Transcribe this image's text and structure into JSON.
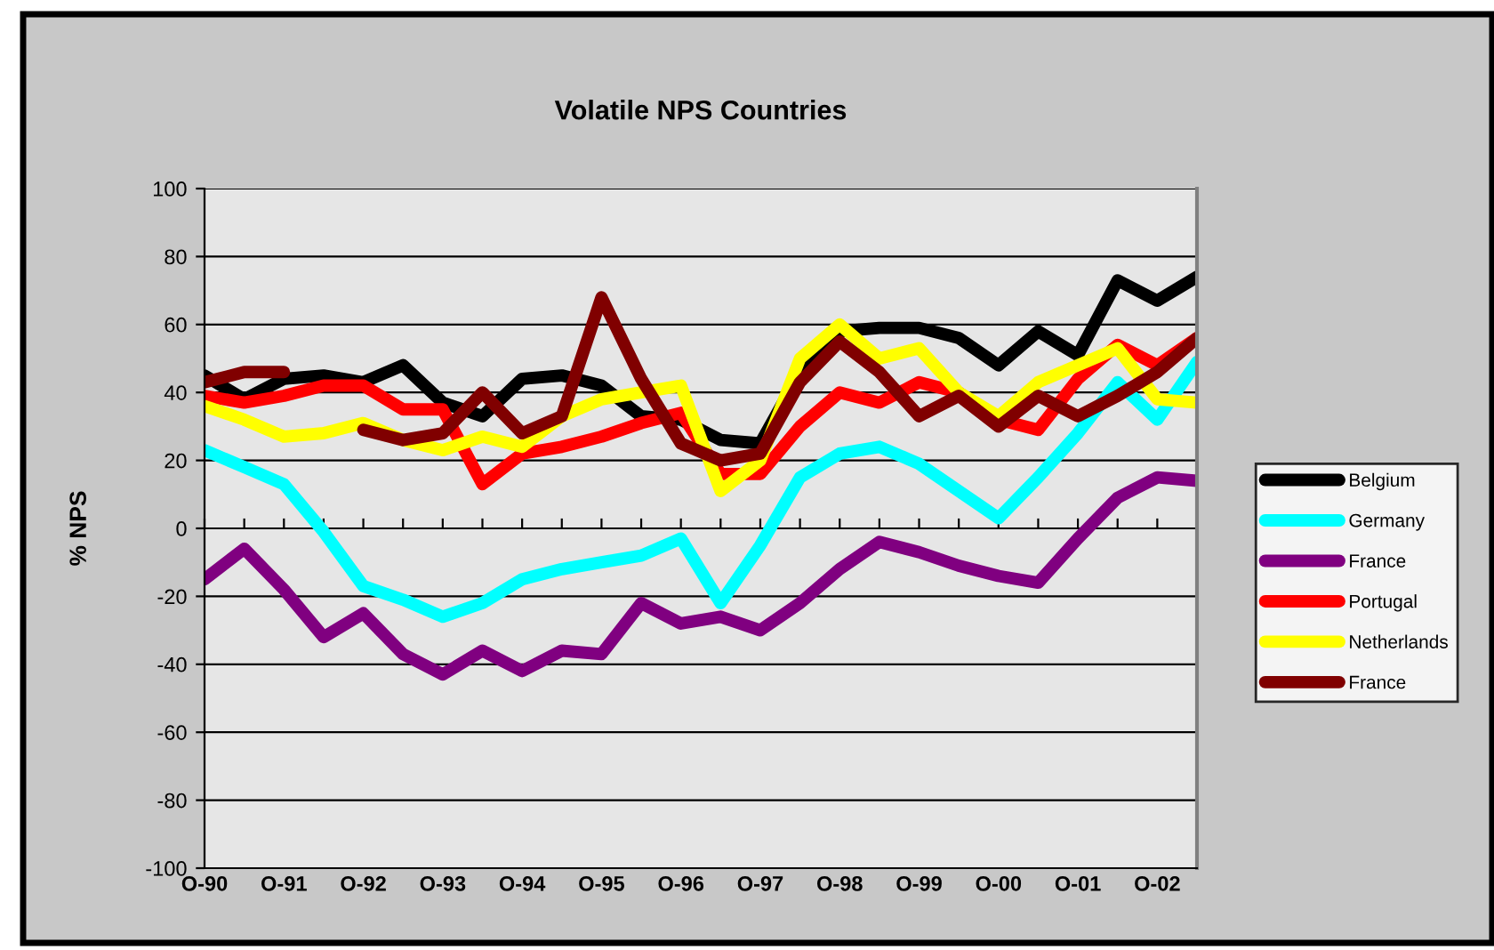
{
  "chart_data": {
    "type": "line",
    "title": "Volatile NPS Countries",
    "ylabel": "% NPS",
    "categories": [
      "O-90",
      null,
      "O-91",
      null,
      "O-92",
      null,
      "O-93",
      null,
      "O-94",
      null,
      "O-95",
      null,
      "O-96",
      null,
      "O-97",
      null,
      "O-98",
      null,
      "O-99",
      null,
      "O-00",
      null,
      "O-01",
      null,
      "O-02",
      null
    ],
    "series": [
      {
        "name": "Belgium",
        "color": "#000000",
        "values": [
          45,
          38,
          44,
          45,
          43,
          48,
          37,
          33,
          44,
          45,
          42,
          33,
          32,
          26,
          25,
          46,
          58,
          59,
          59,
          56,
          48,
          58,
          51,
          73,
          67,
          74
        ]
      },
      {
        "name": "Germany",
        "color": "#00ffff",
        "values": [
          23,
          18,
          13,
          -1,
          -17,
          -21,
          -26,
          -22,
          -15,
          -12,
          -10,
          -8,
          -3,
          -22,
          -5,
          15,
          22,
          24,
          19,
          11,
          3,
          15,
          28,
          43,
          32,
          49
        ]
      },
      {
        "name": "France",
        "color": "#800080",
        "values": [
          -15,
          -6,
          -18,
          -32,
          -25,
          -37,
          -43,
          -36,
          -42,
          -36,
          -37,
          -22,
          -28,
          -26,
          -30,
          -22,
          -12,
          -4,
          -7,
          -11,
          -14,
          -16,
          -3,
          9,
          15,
          14
        ]
      },
      {
        "name": "Portugal",
        "color": "#ff0000",
        "values": [
          39,
          37,
          39,
          42,
          42,
          35,
          35,
          13,
          22,
          24,
          27,
          31,
          34,
          16,
          16,
          30,
          40,
          37,
          43,
          40,
          32,
          29,
          44,
          54,
          48,
          56
        ]
      },
      {
        "name": "Netherlands",
        "color": "#ffff00",
        "values": [
          36,
          32,
          27,
          28,
          31,
          26,
          23,
          27,
          24,
          33,
          38,
          40,
          42,
          11,
          20,
          50,
          60,
          50,
          53,
          40,
          33,
          43,
          48,
          53,
          38,
          37
        ]
      },
      {
        "name": "France",
        "color": "#800000",
        "values": [
          43,
          46,
          46,
          null,
          29,
          26,
          28,
          40,
          28,
          33,
          68,
          44,
          25,
          20,
          22,
          43,
          55,
          46,
          33,
          39,
          30,
          39,
          33,
          39,
          46,
          56
        ]
      }
    ],
    "ylim": [
      -100,
      100
    ],
    "yticks": [
      -100,
      -80,
      -60,
      -40,
      -20,
      0,
      20,
      40,
      60,
      80,
      100
    ],
    "grid": "y",
    "legend": "right",
    "marker": "none",
    "line_style": "solid"
  }
}
